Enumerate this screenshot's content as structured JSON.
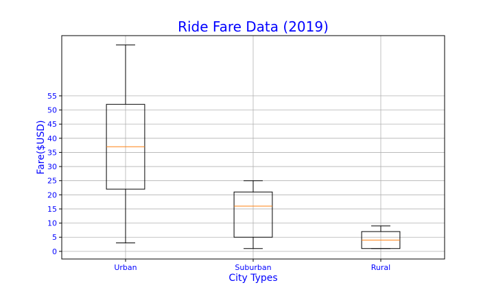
{
  "chart_data": {
    "type": "box",
    "title": "Ride Fare Data (2019)",
    "xlabel": "City Types",
    "ylabel": "Fare($USD)",
    "categories": [
      "Urban",
      "Suburban",
      "Rural"
    ],
    "boxes": [
      {
        "name": "Urban",
        "whisker_low": 3,
        "q1": 22,
        "median": 37,
        "q3": 52,
        "whisker_high": 73
      },
      {
        "name": "Suburban",
        "whisker_low": 1,
        "q1": 5,
        "median": 16,
        "q3": 21,
        "whisker_high": 25
      },
      {
        "name": "Rural",
        "whisker_low": 1,
        "q1": 1,
        "median": 4,
        "q3": 7,
        "whisker_high": 9
      }
    ],
    "yticks": [
      0,
      5,
      10,
      15,
      20,
      25,
      30,
      35,
      40,
      45,
      50,
      55
    ],
    "ylim": [
      -2.7,
      76.3
    ],
    "grid": true,
    "colors": {
      "text": "#0000ff",
      "box": "#000000",
      "median": "#ff7f0e",
      "grid": "#b0b0b0"
    }
  }
}
